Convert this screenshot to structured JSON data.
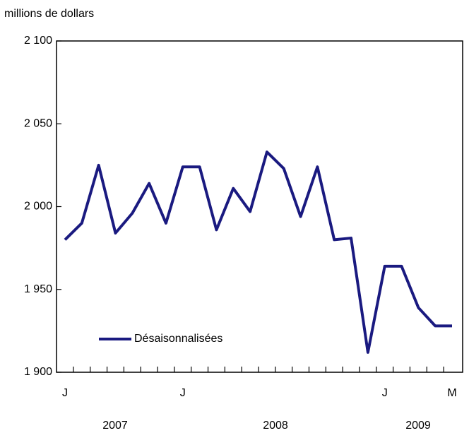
{
  "chart_data": {
    "type": "line",
    "y_axis_label": "millions de dollars",
    "categories": [
      "J",
      null,
      null,
      null,
      null,
      null,
      null,
      "J",
      null,
      null,
      null,
      null,
      null,
      null,
      null,
      null,
      null,
      null,
      null,
      "J",
      null,
      null,
      null,
      "M"
    ],
    "years": [
      "2007",
      "2008",
      "2009"
    ],
    "series": [
      {
        "name": "Désaisonnalisées",
        "color": "#1a1a80",
        "values": [
          1980,
          1990,
          2025,
          1984,
          1996,
          2014,
          1990,
          2024,
          2024,
          1986,
          2011,
          1997,
          2033,
          2023,
          1994,
          2024,
          1980,
          1981,
          1912,
          1964,
          1964,
          1939,
          1928,
          1928
        ]
      }
    ],
    "ylim": [
      1900,
      2100
    ],
    "yticks": [
      {
        "value": 1900,
        "label": "1 900"
      },
      {
        "value": 1950,
        "label": "1 950"
      },
      {
        "value": 2000,
        "label": "2 000"
      },
      {
        "value": 2050,
        "label": "2 050"
      },
      {
        "value": 2100,
        "label": "2 100"
      }
    ],
    "grid": false
  }
}
